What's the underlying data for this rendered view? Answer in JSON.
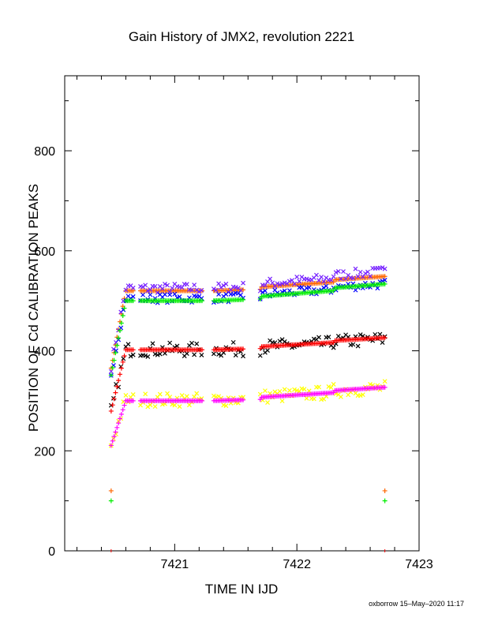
{
  "chart_data": {
    "type": "scatter",
    "title": "Gain History of JMX2, revolution 2221",
    "xlabel": "TIME IN IJD",
    "ylabel": "POSITION OF Cd CALIBRATION PEAKS",
    "xlim": [
      7420.1,
      7423.0
    ],
    "ylim": [
      0,
      950
    ],
    "xticks": [
      7421,
      7422,
      7423
    ],
    "yticks": [
      0,
      200,
      400,
      600,
      800
    ],
    "grid": false,
    "footer": "oxborrow 15–May–2020 11:17",
    "series": [
      {
        "color": "#ff6600",
        "marker": "plus",
        "role": "fit",
        "base": 520,
        "step": 30,
        "ref": 120,
        "nearStart": 0.62,
        "rise": 0.55
      },
      {
        "color": "#7722ff",
        "marker": "x",
        "role": "raw",
        "base": 525,
        "step": 35,
        "scatter": 10,
        "nearStart": 0.62,
        "rise": 0.55
      },
      {
        "color": "#0000ff",
        "marker": "x",
        "role": "raw",
        "base": 505,
        "step": 30,
        "scatter": 9,
        "nearStart": 0.62,
        "rise": 0.55
      },
      {
        "color": "#00ee00",
        "marker": "plus",
        "role": "fit",
        "base": 500,
        "step": 35,
        "ref": 100,
        "nearStart": 0.62,
        "rise": 0.55
      },
      {
        "color": "#000000",
        "marker": "x",
        "role": "raw",
        "base": 402,
        "step": 22,
        "scatter": 14,
        "nearStart": 0.45,
        "rise": 0.5
      },
      {
        "color": "#ff0000",
        "marker": "plus",
        "role": "fit",
        "base": 402,
        "step": 25,
        "nearStart": 0.45,
        "rise": 0.5
      },
      {
        "color": "#ffff00",
        "marker": "x",
        "role": "raw",
        "base": 302,
        "step": 25,
        "scatter": 14,
        "nearStart": 0.3,
        "rise": 0.55
      },
      {
        "color": "#ff00ff",
        "marker": "plus",
        "role": "fit",
        "base": 300,
        "step": 28,
        "nearStart": 0.3,
        "rise": 0.55
      }
    ],
    "time_segments": [
      [
        7420.48,
        7420.66
      ],
      [
        7420.72,
        7421.23
      ],
      [
        7421.32,
        7421.57
      ],
      [
        7421.7,
        7422.72
      ]
    ],
    "first_time": 7420.48,
    "last_time": 7422.72
  }
}
